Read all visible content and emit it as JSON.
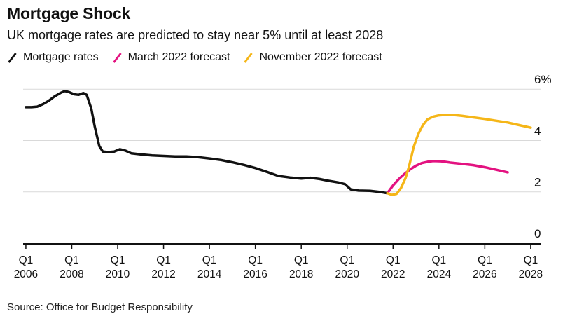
{
  "header": {
    "title": "Mortgage Shock",
    "subtitle": "UK mortgage rates are predicted to stay near 5% until at least 2028"
  },
  "legend": [
    {
      "label": "Mortgage rates",
      "color": "#111111",
      "icon": "slash-marker"
    },
    {
      "label": "March 2022 forecast",
      "color": "#e31280",
      "icon": "slash-marker"
    },
    {
      "label": "November 2022 forecast",
      "color": "#f5b618",
      "icon": "slash-marker"
    }
  ],
  "source": "Source: Office for Budget Responsibility",
  "chart_data": {
    "type": "line",
    "title": "Mortgage Shock",
    "subtitle": "UK mortgage rates are predicted to stay near 5% until at least 2028",
    "xlabel": "",
    "ylabel": "",
    "grid": "horizontal",
    "grid_color": "#d9d9d9",
    "axis_color": "#111111",
    "label_color": "#111111",
    "xlim": [
      2005.88,
      2028.43
    ],
    "ylim": [
      0,
      6.47
    ],
    "x_ticks": [
      2006,
      2008,
      2010,
      2012,
      2014,
      2016,
      2018,
      2020,
      2022,
      2024,
      2026,
      2028
    ],
    "x_tick_prefix": "Q1",
    "y_ticks": [
      0,
      2,
      4,
      6
    ],
    "y_tick_labels": [
      "0",
      "2",
      "4",
      "6%"
    ],
    "legend_position": "top",
    "series": [
      {
        "name": "Mortgage rates",
        "color": "#111111",
        "points": [
          [
            2006.0,
            5.3
          ],
          [
            2006.25,
            5.3
          ],
          [
            2006.5,
            5.32
          ],
          [
            2006.75,
            5.42
          ],
          [
            2007.0,
            5.55
          ],
          [
            2007.25,
            5.72
          ],
          [
            2007.5,
            5.85
          ],
          [
            2007.7,
            5.93
          ],
          [
            2007.9,
            5.88
          ],
          [
            2008.1,
            5.8
          ],
          [
            2008.3,
            5.78
          ],
          [
            2008.5,
            5.85
          ],
          [
            2008.65,
            5.78
          ],
          [
            2008.85,
            5.25
          ],
          [
            2009.0,
            4.55
          ],
          [
            2009.2,
            3.78
          ],
          [
            2009.35,
            3.57
          ],
          [
            2009.6,
            3.55
          ],
          [
            2009.85,
            3.57
          ],
          [
            2010.1,
            3.66
          ],
          [
            2010.35,
            3.6
          ],
          [
            2010.6,
            3.5
          ],
          [
            2011.0,
            3.46
          ],
          [
            2011.5,
            3.42
          ],
          [
            2012.0,
            3.4
          ],
          [
            2012.5,
            3.38
          ],
          [
            2013.0,
            3.38
          ],
          [
            2013.5,
            3.35
          ],
          [
            2014.0,
            3.3
          ],
          [
            2014.5,
            3.24
          ],
          [
            2015.0,
            3.15
          ],
          [
            2015.5,
            3.05
          ],
          [
            2016.0,
            2.93
          ],
          [
            2016.5,
            2.78
          ],
          [
            2017.0,
            2.62
          ],
          [
            2017.5,
            2.56
          ],
          [
            2018.0,
            2.52
          ],
          [
            2018.4,
            2.55
          ],
          [
            2018.8,
            2.5
          ],
          [
            2019.2,
            2.43
          ],
          [
            2019.6,
            2.37
          ],
          [
            2019.9,
            2.3
          ],
          [
            2020.15,
            2.1
          ],
          [
            2020.5,
            2.05
          ],
          [
            2021.0,
            2.04
          ],
          [
            2021.4,
            2.0
          ],
          [
            2021.75,
            1.95
          ]
        ]
      },
      {
        "name": "March 2022 forecast",
        "color": "#e31280",
        "points": [
          [
            2021.75,
            1.95
          ],
          [
            2022.0,
            2.25
          ],
          [
            2022.25,
            2.5
          ],
          [
            2022.5,
            2.7
          ],
          [
            2022.75,
            2.88
          ],
          [
            2023.0,
            3.02
          ],
          [
            2023.25,
            3.12
          ],
          [
            2023.5,
            3.17
          ],
          [
            2023.75,
            3.2
          ],
          [
            2024.1,
            3.19
          ],
          [
            2024.5,
            3.14
          ],
          [
            2025.0,
            3.09
          ],
          [
            2025.5,
            3.04
          ],
          [
            2026.0,
            2.96
          ],
          [
            2026.5,
            2.86
          ],
          [
            2027.0,
            2.76
          ]
        ]
      },
      {
        "name": "November 2022 forecast",
        "color": "#f5b618",
        "points": [
          [
            2021.75,
            1.95
          ],
          [
            2021.95,
            1.88
          ],
          [
            2022.15,
            1.92
          ],
          [
            2022.35,
            2.15
          ],
          [
            2022.55,
            2.55
          ],
          [
            2022.7,
            3.0
          ],
          [
            2022.9,
            3.75
          ],
          [
            2023.1,
            4.25
          ],
          [
            2023.3,
            4.6
          ],
          [
            2023.5,
            4.82
          ],
          [
            2023.75,
            4.93
          ],
          [
            2024.0,
            4.98
          ],
          [
            2024.3,
            5.0
          ],
          [
            2024.7,
            4.99
          ],
          [
            2025.0,
            4.96
          ],
          [
            2025.5,
            4.9
          ],
          [
            2026.0,
            4.84
          ],
          [
            2026.5,
            4.77
          ],
          [
            2027.0,
            4.7
          ],
          [
            2027.5,
            4.6
          ],
          [
            2028.0,
            4.5
          ]
        ]
      }
    ]
  }
}
